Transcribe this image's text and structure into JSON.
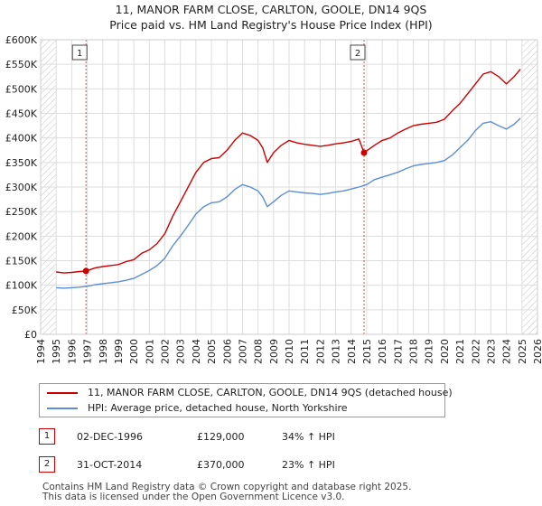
{
  "title_line1": "11, MANOR FARM CLOSE, CARLTON, GOOLE, DN14 9QS",
  "title_line2": "Price paid vs. HM Land Registry's House Price Index (HPI)",
  "chart_data": {
    "type": "line",
    "xlim": [
      1994,
      2026
    ],
    "ylim": [
      0,
      600000
    ],
    "x_ticks": [
      1994,
      1995,
      1996,
      1997,
      1998,
      1999,
      2000,
      2001,
      2002,
      2003,
      2004,
      2005,
      2006,
      2007,
      2008,
      2009,
      2010,
      2011,
      2012,
      2013,
      2014,
      2015,
      2016,
      2017,
      2018,
      2019,
      2020,
      2021,
      2022,
      2023,
      2024,
      2025,
      2026
    ],
    "y_ticks": [
      {
        "value": 0,
        "label": "£0"
      },
      {
        "value": 50000,
        "label": "£50K"
      },
      {
        "value": 100000,
        "label": "£100K"
      },
      {
        "value": 150000,
        "label": "£150K"
      },
      {
        "value": 200000,
        "label": "£200K"
      },
      {
        "value": 250000,
        "label": "£250K"
      },
      {
        "value": 300000,
        "label": "£300K"
      },
      {
        "value": 350000,
        "label": "£350K"
      },
      {
        "value": 400000,
        "label": "£400K"
      },
      {
        "value": 450000,
        "label": "£450K"
      },
      {
        "value": 500000,
        "label": "£500K"
      },
      {
        "value": 550000,
        "label": "£550K"
      },
      {
        "value": 600000,
        "label": "£600K"
      }
    ],
    "hatched_before": 1995.0,
    "hatched_after": 2025.0,
    "series": [
      {
        "name": "11, MANOR FARM CLOSE, CARLTON, GOOLE, DN14 9QS (detached house)",
        "color": "#cc0000",
        "x": [
          1995.0,
          1995.5,
          1996.0,
          1996.5,
          1996.92,
          1997.5,
          1998.0,
          1998.5,
          1999.0,
          1999.5,
          2000.0,
          2000.5,
          2001.0,
          2001.5,
          2002.0,
          2002.5,
          2003.0,
          2003.5,
          2004.0,
          2004.5,
          2005.0,
          2005.5,
          2006.0,
          2006.5,
          2007.0,
          2007.5,
          2008.0,
          2008.3,
          2008.6,
          2009.0,
          2009.5,
          2010.0,
          2010.5,
          2011.0,
          2011.5,
          2012.0,
          2012.5,
          2013.0,
          2013.5,
          2014.0,
          2014.5,
          2014.83,
          2015.5,
          2016.0,
          2016.5,
          2017.0,
          2017.5,
          2018.0,
          2018.5,
          2019.0,
          2019.5,
          2020.0,
          2020.5,
          2021.0,
          2021.5,
          2022.0,
          2022.5,
          2023.0,
          2023.5,
          2024.0,
          2024.5,
          2024.9
        ],
        "values": [
          127000,
          125000,
          126000,
          128000,
          129000,
          135000,
          138000,
          140000,
          142000,
          148000,
          152000,
          165000,
          172000,
          185000,
          205000,
          240000,
          270000,
          300000,
          330000,
          350000,
          358000,
          360000,
          375000,
          395000,
          410000,
          405000,
          395000,
          380000,
          350000,
          370000,
          385000,
          395000,
          390000,
          387000,
          385000,
          383000,
          385000,
          388000,
          390000,
          393000,
          398000,
          370000,
          385000,
          395000,
          400000,
          410000,
          418000,
          425000,
          428000,
          430000,
          432000,
          438000,
          455000,
          470000,
          490000,
          510000,
          530000,
          535000,
          525000,
          510000,
          525000,
          540000
        ]
      },
      {
        "name": "HPI: Average price, detached house, North Yorkshire",
        "color": "#5b8ed6",
        "x": [
          1995.0,
          1995.5,
          1996.0,
          1996.5,
          1997.0,
          1997.5,
          1998.0,
          1998.5,
          1999.0,
          1999.5,
          2000.0,
          2000.5,
          2001.0,
          2001.5,
          2002.0,
          2002.5,
          2003.0,
          2003.5,
          2004.0,
          2004.5,
          2005.0,
          2005.5,
          2006.0,
          2006.5,
          2007.0,
          2007.5,
          2008.0,
          2008.3,
          2008.6,
          2009.0,
          2009.5,
          2010.0,
          2010.5,
          2011.0,
          2011.5,
          2012.0,
          2012.5,
          2013.0,
          2013.5,
          2014.0,
          2014.5,
          2015.0,
          2015.5,
          2016.0,
          2016.5,
          2017.0,
          2017.5,
          2018.0,
          2018.5,
          2019.0,
          2019.5,
          2020.0,
          2020.5,
          2021.0,
          2021.5,
          2022.0,
          2022.5,
          2023.0,
          2023.5,
          2024.0,
          2024.5,
          2024.9
        ],
        "values": [
          95000,
          94000,
          95000,
          96000,
          98000,
          101000,
          103000,
          105000,
          107000,
          110000,
          114000,
          122000,
          130000,
          140000,
          155000,
          180000,
          200000,
          222000,
          245000,
          260000,
          268000,
          270000,
          280000,
          295000,
          305000,
          300000,
          292000,
          280000,
          260000,
          270000,
          283000,
          292000,
          290000,
          288000,
          287000,
          285000,
          287000,
          290000,
          292000,
          296000,
          300000,
          305000,
          315000,
          320000,
          325000,
          330000,
          337000,
          343000,
          346000,
          348000,
          350000,
          354000,
          365000,
          380000,
          395000,
          415000,
          430000,
          433000,
          425000,
          418000,
          428000,
          440000
        ]
      }
    ],
    "sales": [
      {
        "label": "1",
        "x": 1996.92,
        "value": 129000
      },
      {
        "label": "2",
        "x": 2014.83,
        "value": 370000
      }
    ]
  },
  "legend": {
    "property_label": "11, MANOR FARM CLOSE, CARLTON, GOOLE, DN14 9QS (detached house)",
    "hpi_label": "HPI: Average price, detached house, North Yorkshire"
  },
  "sales_table": [
    {
      "num": "1",
      "date": "02-DEC-1996",
      "price": "£129,000",
      "hpi": "34% ↑ HPI"
    },
    {
      "num": "2",
      "date": "31-OCT-2014",
      "price": "£370,000",
      "hpi": "23% ↑ HPI"
    }
  ],
  "footer": {
    "line1": "Contains HM Land Registry data © Crown copyright and database right 2025.",
    "line2": "This data is licensed under the Open Government Licence v3.0."
  },
  "colors": {
    "property_line": "#cc0000",
    "hpi_line": "#5b8ed6",
    "grid": "#dddddd",
    "marker_border": "#cc0000"
  }
}
